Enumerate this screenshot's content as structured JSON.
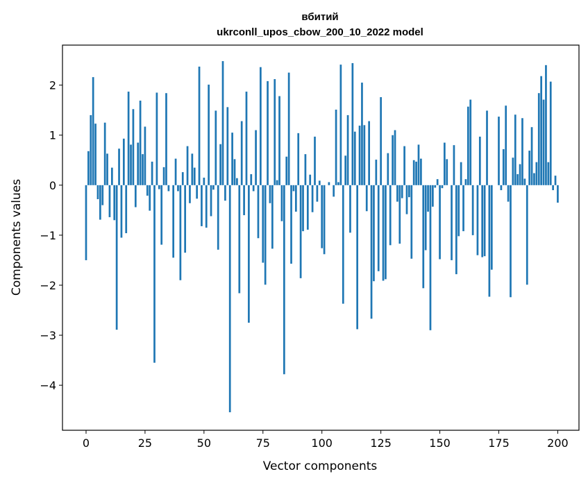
{
  "chart_data": {
    "type": "bar",
    "title": "вбитий",
    "subtitle": "ukrconll_upos_cbow_200_10_2022 model",
    "xlabel": "Vector components",
    "ylabel": "Components values",
    "xlim": [
      -10,
      209
    ],
    "ylim": [
      -4.9,
      2.8
    ],
    "xticks": [
      0,
      25,
      50,
      75,
      100,
      125,
      150,
      175,
      200
    ],
    "yticks": [
      -4,
      -3,
      -2,
      -1,
      0,
      1,
      2
    ],
    "ytick_labels": [
      "−4",
      "−3",
      "−2",
      "−1",
      "0",
      "1",
      "2"
    ],
    "grid": false,
    "bar_color": "#1f77b4",
    "values": [
      -1.5,
      0.68,
      1.4,
      2.16,
      1.23,
      -0.28,
      -0.69,
      -0.4,
      1.25,
      0.63,
      -0.64,
      0.35,
      -0.7,
      -2.89,
      0.73,
      -1.05,
      0.93,
      -0.96,
      1.87,
      0.81,
      1.52,
      -0.44,
      0.85,
      1.69,
      0.62,
      1.17,
      -0.21,
      -0.51,
      0.47,
      -3.55,
      1.85,
      -0.08,
      -1.19,
      0.36,
      1.84,
      -0.12,
      0.0,
      -1.45,
      0.53,
      -0.12,
      -1.9,
      0.26,
      -1.35,
      0.78,
      -0.36,
      0.63,
      0.35,
      -0.27,
      2.37,
      -0.82,
      0.15,
      -0.85,
      2.01,
      -0.62,
      -0.09,
      1.49,
      -1.29,
      0.82,
      2.48,
      -0.31,
      1.56,
      -4.54,
      1.05,
      0.52,
      0.14,
      -2.16,
      1.28,
      -0.6,
      1.87,
      -2.75,
      0.22,
      -0.12,
      1.1,
      -1.06,
      2.36,
      -1.55,
      -1.99,
      2.08,
      -0.36,
      -1.27,
      2.12,
      0.1,
      1.78,
      -0.72,
      -3.78,
      0.57,
      2.25,
      -1.57,
      -0.12,
      -0.53,
      1.04,
      -1.86,
      -0.92,
      0.62,
      -0.89,
      0.21,
      -0.54,
      0.97,
      -0.33,
      0.09,
      -1.26,
      -1.38,
      0.0,
      0.06,
      0.0,
      -0.23,
      1.51,
      0.06,
      2.41,
      -2.37,
      0.59,
      1.4,
      -0.95,
      2.44,
      1.07,
      -2.88,
      1.19,
      2.05,
      1.2,
      -0.52,
      1.28,
      -2.67,
      -1.92,
      0.51,
      -1.72,
      1.76,
      -1.91,
      -1.88,
      0.64,
      -1.2,
      1.0,
      1.1,
      -0.33,
      -1.17,
      -0.26,
      0.78,
      -0.58,
      -0.24,
      -1.47,
      0.5,
      0.47,
      0.81,
      0.53,
      -2.06,
      -1.3,
      -0.53,
      -2.9,
      -0.43,
      -0.05,
      0.12,
      -1.48,
      -0.06,
      0.85,
      0.52,
      0.0,
      -1.5,
      0.8,
      -1.78,
      -1.02,
      0.46,
      -0.92,
      0.12,
      1.57,
      1.71,
      -1.0,
      0.0,
      -1.4,
      0.97,
      -1.44,
      -1.42,
      1.49,
      -2.23,
      -1.69,
      0.0,
      0.0,
      1.37,
      -0.1,
      0.72,
      1.59,
      -0.33,
      -2.24,
      0.55,
      1.41,
      0.22,
      0.42,
      1.34,
      0.13,
      -1.99,
      0.69,
      1.16,
      0.24,
      0.46,
      1.84,
      2.18,
      1.71,
      2.4,
      0.46,
      2.07,
      -0.1,
      0.19,
      -0.35
    ]
  }
}
